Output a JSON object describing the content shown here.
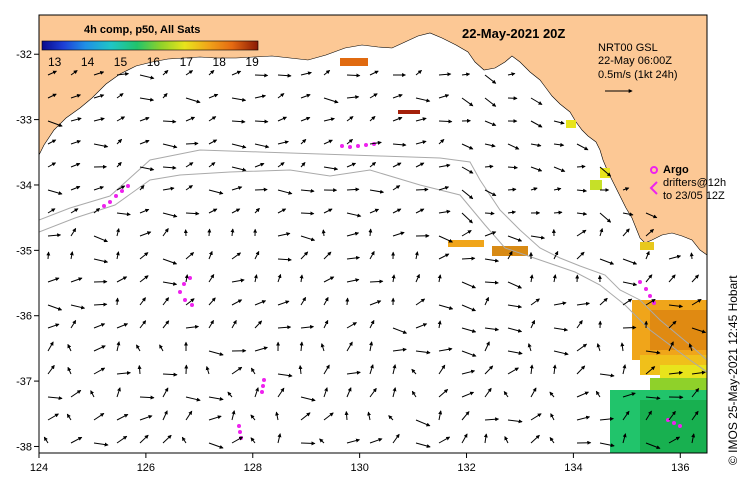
{
  "map": {
    "title": "22-May-2021 20Z",
    "credit": "© IMOS 25-May-2021 12:45 Hobart",
    "colorbar": {
      "title": "4h comp, p50, All Sats",
      "ticks": [
        "13",
        "14",
        "15",
        "16",
        "17",
        "18",
        "19"
      ],
      "colors": [
        "#0a0a8c",
        "#1d3fd6",
        "#1f8fe6",
        "#1fc6c6",
        "#21c46b",
        "#8fd12a",
        "#e8e41c",
        "#f0a51a",
        "#e56a12",
        "#b8370a",
        "#8a1a05"
      ]
    },
    "current_legend": {
      "line1": "NRT00 GSL",
      "line2": "22-May 06:00Z",
      "line3": "0.5m/s (1kt 24h)"
    },
    "argo_legend": {
      "label": "Argo",
      "line1": "drifters@12h",
      "line2": "to 23/05 12Z"
    },
    "x_axis": {
      "range": [
        124,
        136.5
      ],
      "ticks": [
        "124",
        "126",
        "128",
        "130",
        "132",
        "134",
        "136"
      ]
    },
    "y_axis": {
      "range": [
        -38.1,
        -31.4
      ],
      "ticks": [
        "-32",
        "-33",
        "-34",
        "-35",
        "-36",
        "-37",
        "-38"
      ]
    },
    "colors": {
      "land": "#fcc895",
      "ocean": "#ffffff",
      "drifter": "#ee22ee",
      "bathymetry": "#aaaaaa",
      "arrow": "#000000"
    }
  }
}
